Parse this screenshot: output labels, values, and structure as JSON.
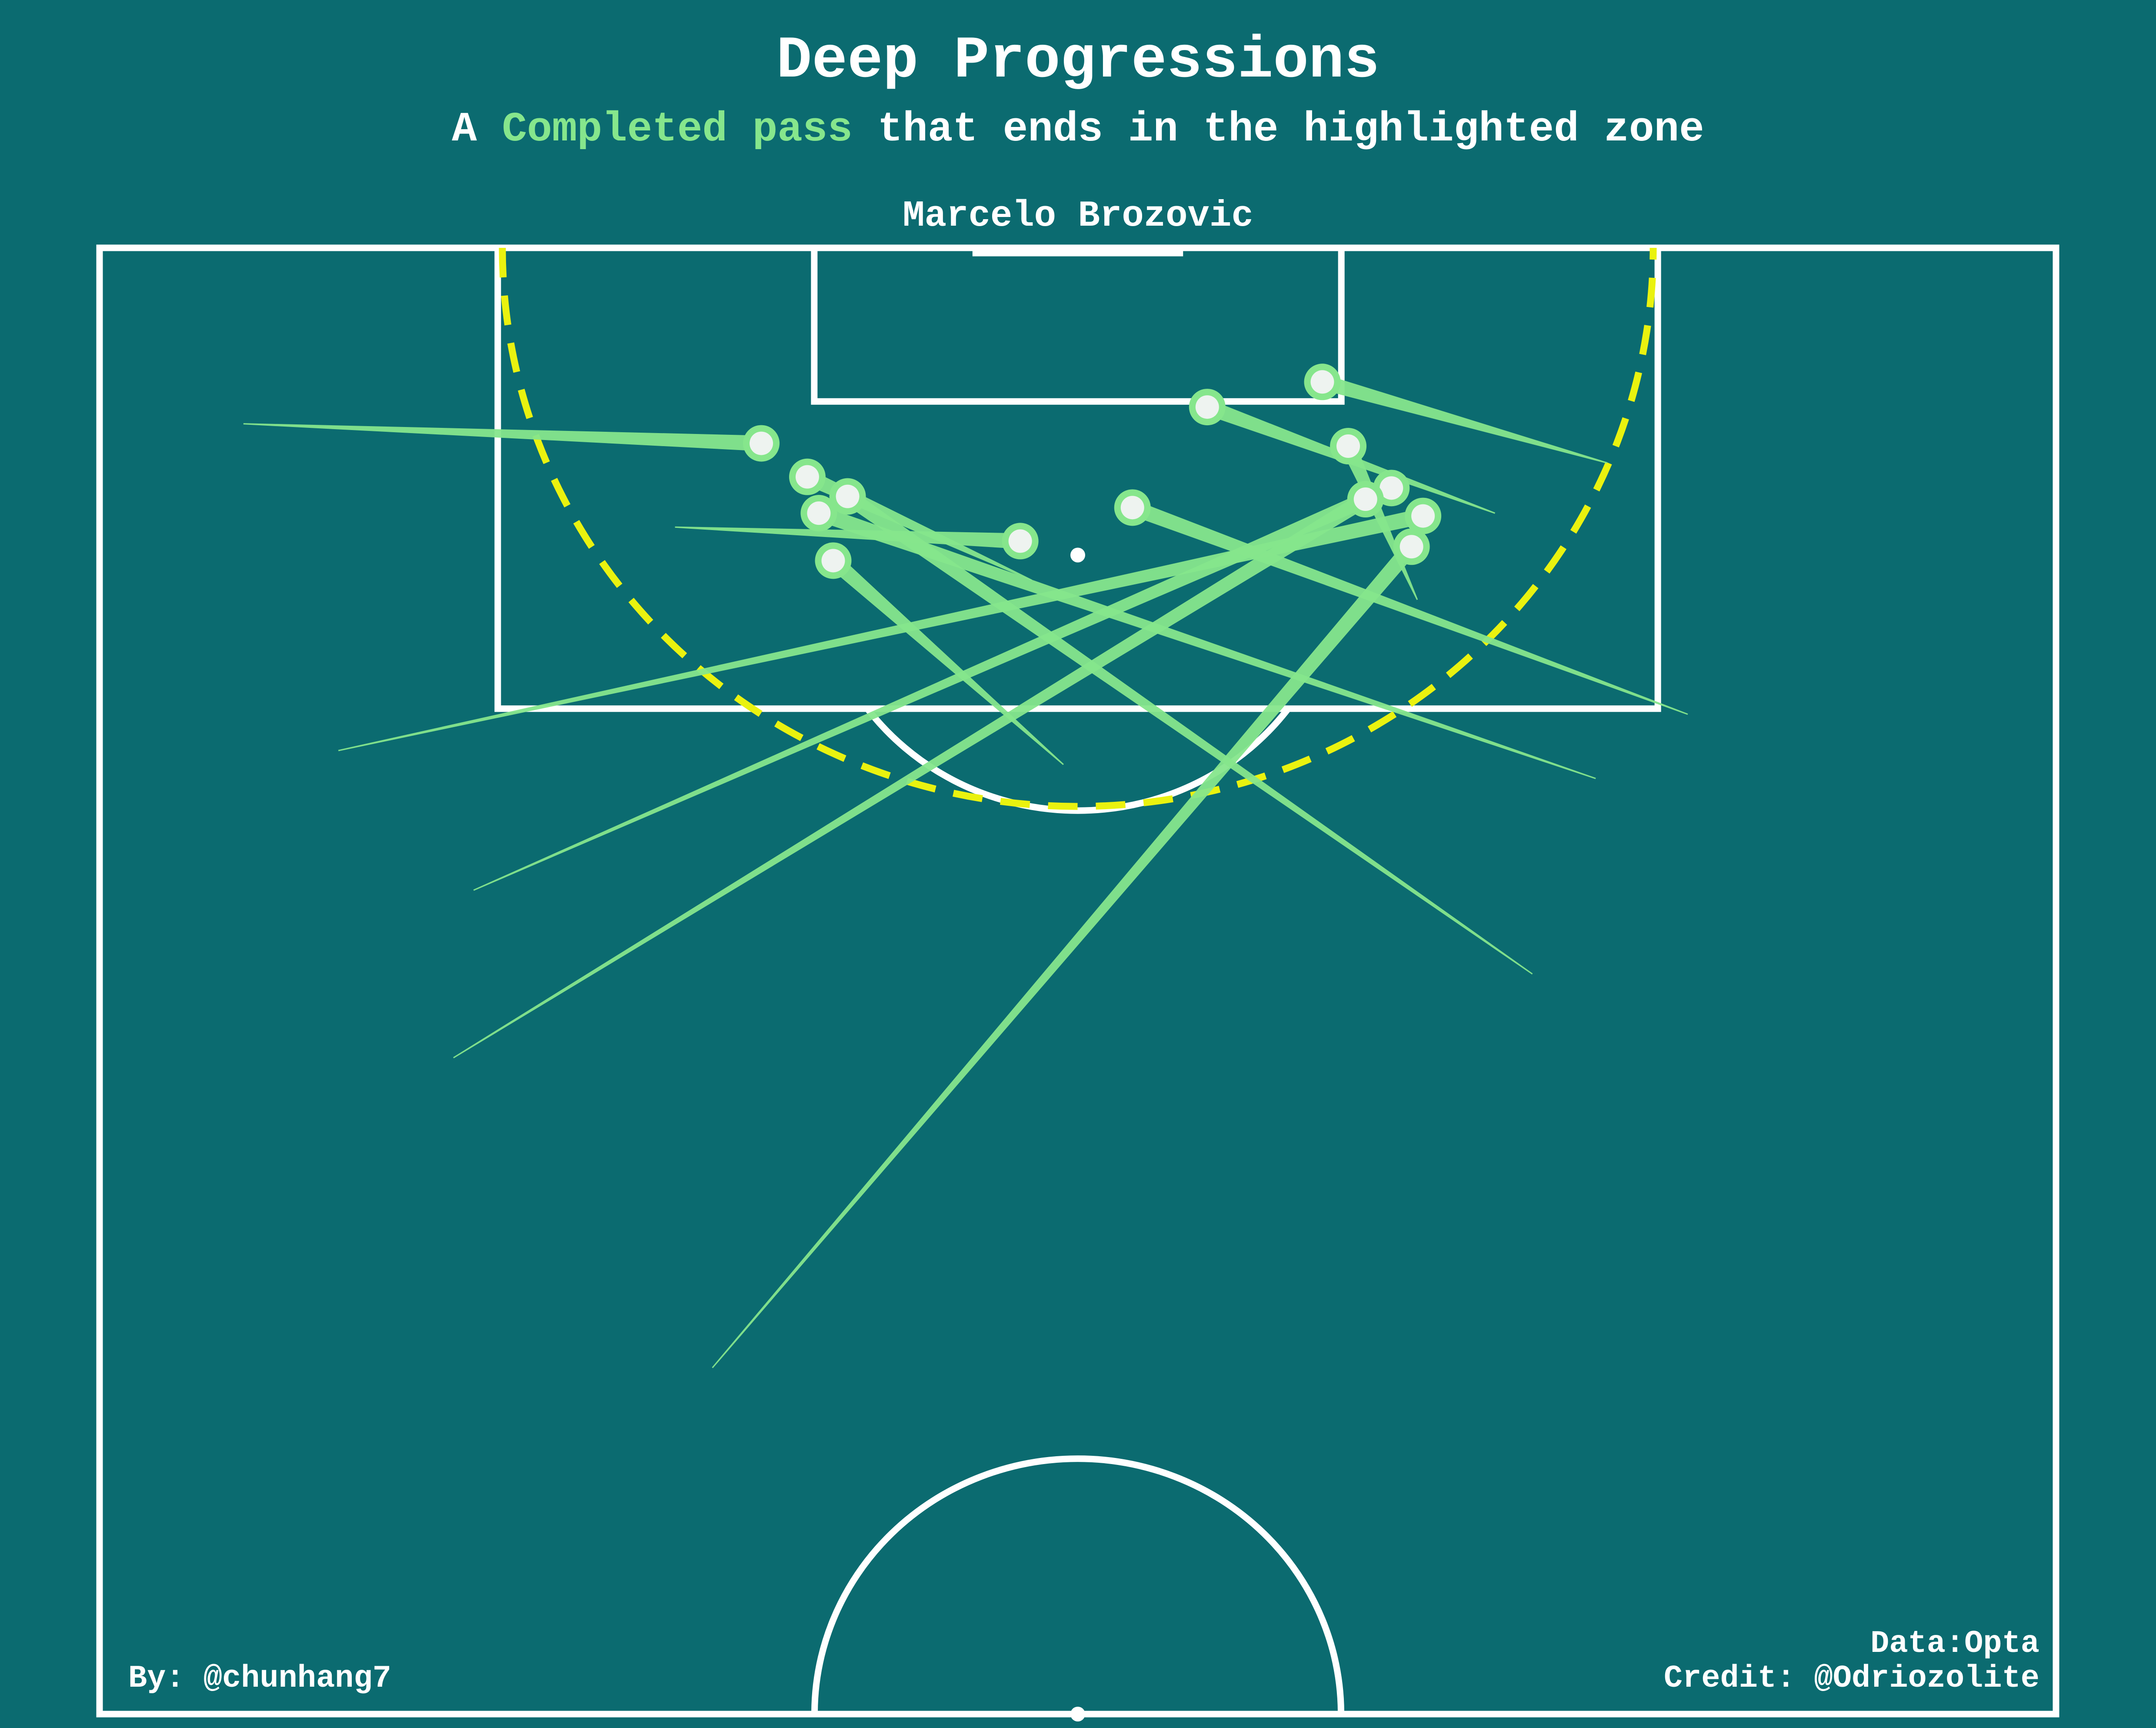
{
  "title": "Deep Progressions",
  "subtitle": {
    "before": "A ",
    "highlight": "Completed pass",
    "after": " that ends in the highlighted zone",
    "highlight_color": "#86e68c"
  },
  "player": "Marcelo Brozovic",
  "footer": {
    "by": "By: @chunhang7",
    "data": "Data:Opta",
    "credit": "Credit: @Odriozolite"
  },
  "colors": {
    "background": "#0b6b70",
    "lines": "#ffffff",
    "pass": "#86e68c",
    "zone": "#eaf20f"
  },
  "chart_data": {
    "type": "pass-map",
    "pitch": "half, vertical, attacking upwards",
    "zone": "20 m radius from goal centre (dashed)",
    "x_range": [
      0,
      68
    ],
    "y_range": [
      52.5,
      105
    ],
    "passes": [
      {
        "start": [
          5.0,
          98.7
        ],
        "end": [
          23.0,
          98.0
        ],
        "outcome": "completed"
      },
      {
        "start": [
          20.0,
          95.0
        ],
        "end": [
          32.0,
          94.5
        ],
        "outcome": "completed"
      },
      {
        "start": [
          33.5,
          86.5
        ],
        "end": [
          25.5,
          93.8
        ],
        "outcome": "completed"
      },
      {
        "start": [
          8.3,
          87.0
        ],
        "end": [
          46.0,
          95.4
        ],
        "outcome": "completed"
      },
      {
        "start": [
          13.0,
          82.0
        ],
        "end": [
          44.9,
          96.4
        ],
        "outcome": "completed"
      },
      {
        "start": [
          12.3,
          76.0
        ],
        "end": [
          44.0,
          96.0
        ],
        "outcome": "completed"
      },
      {
        "start": [
          48.5,
          95.5
        ],
        "end": [
          38.5,
          99.3
        ],
        "outcome": "completed"
      },
      {
        "start": [
          52.4,
          97.3
        ],
        "end": [
          42.5,
          100.2
        ],
        "outcome": "completed"
      },
      {
        "start": [
          52.0,
          86.0
        ],
        "end": [
          25.0,
          95.5
        ],
        "outcome": "completed"
      },
      {
        "start": [
          49.8,
          79.0
        ],
        "end": [
          26.0,
          96.1
        ],
        "outcome": "completed"
      },
      {
        "start": [
          45.8,
          92.4
        ],
        "end": [
          43.4,
          97.9
        ],
        "outcome": "completed"
      },
      {
        "start": [
          55.2,
          88.3
        ],
        "end": [
          35.9,
          95.7
        ],
        "outcome": "completed"
      },
      {
        "start": [
          32.4,
          93.1
        ],
        "end": [
          24.6,
          96.8
        ],
        "outcome": "completed"
      },
      {
        "start": [
          21.3,
          64.9
        ],
        "end": [
          45.6,
          94.3
        ],
        "outcome": "completed"
      }
    ]
  }
}
